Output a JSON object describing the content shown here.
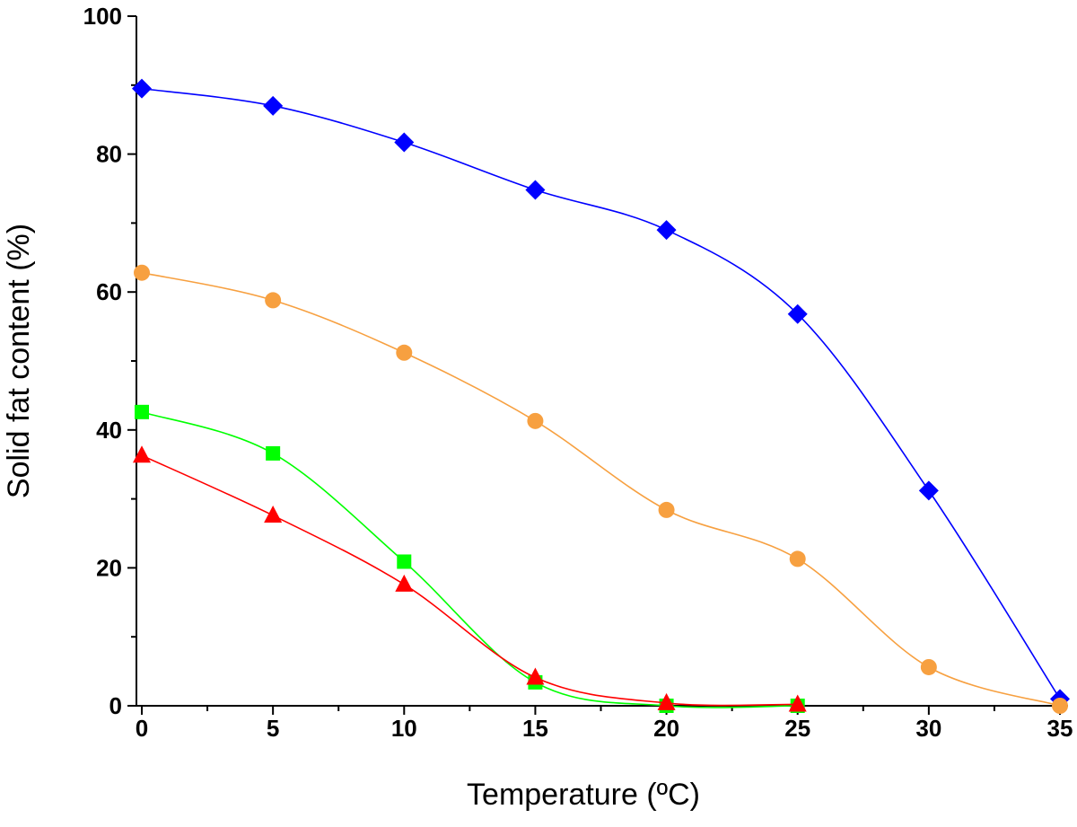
{
  "chart_data": {
    "type": "line",
    "title": "",
    "xlabel": "Temperature (ºC)",
    "ylabel": "Solid fat content (%)",
    "xlim": [
      0,
      35
    ],
    "ylim": [
      0,
      100
    ],
    "x_ticks": [
      0,
      5,
      10,
      15,
      20,
      25,
      30,
      35
    ],
    "x_tick_labels": [
      "0",
      "5",
      "10",
      "15",
      "20",
      "25",
      "30",
      "35"
    ],
    "y_ticks": [
      0,
      20,
      40,
      60,
      80,
      100
    ],
    "y_tick_labels": [
      "0",
      "20",
      "40",
      "60",
      "80",
      "100"
    ],
    "grid": false,
    "legend": "none",
    "series": [
      {
        "marker": "diamond",
        "color": "#0000ff",
        "x": [
          0,
          5,
          10,
          15,
          20,
          25,
          30,
          35
        ],
        "values": [
          89.5,
          87.0,
          81.7,
          74.8,
          69.0,
          56.8,
          31.2,
          1.0
        ]
      },
      {
        "marker": "circle",
        "color": "#f7a040",
        "x": [
          0,
          5,
          10,
          15,
          20,
          25,
          30,
          35
        ],
        "values": [
          62.8,
          58.8,
          51.2,
          41.3,
          28.4,
          21.3,
          5.6,
          0.0
        ]
      },
      {
        "marker": "square",
        "color": "#00ff00",
        "x": [
          0,
          5,
          10,
          15,
          20,
          25
        ],
        "values": [
          42.6,
          36.6,
          20.9,
          3.4,
          0.0,
          0.0
        ]
      },
      {
        "marker": "triangle",
        "color": "#ff0000",
        "x": [
          0,
          5,
          10,
          15,
          20,
          25
        ],
        "values": [
          36.3,
          27.6,
          17.6,
          4.1,
          0.4,
          0.2
        ]
      }
    ]
  }
}
